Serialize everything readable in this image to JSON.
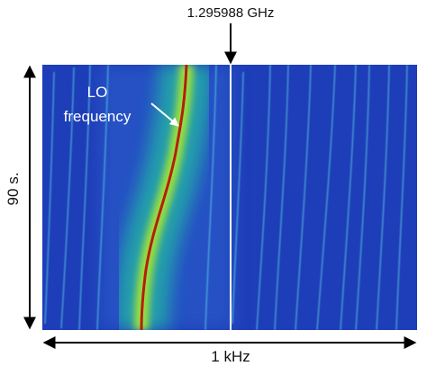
{
  "annotations": {
    "marker_label": "1.295988 GHz",
    "lo_label_line1": "LO",
    "lo_label_line2": "frequency",
    "time_span": "90 s.",
    "frequency_span": "1 kHz"
  }
}
